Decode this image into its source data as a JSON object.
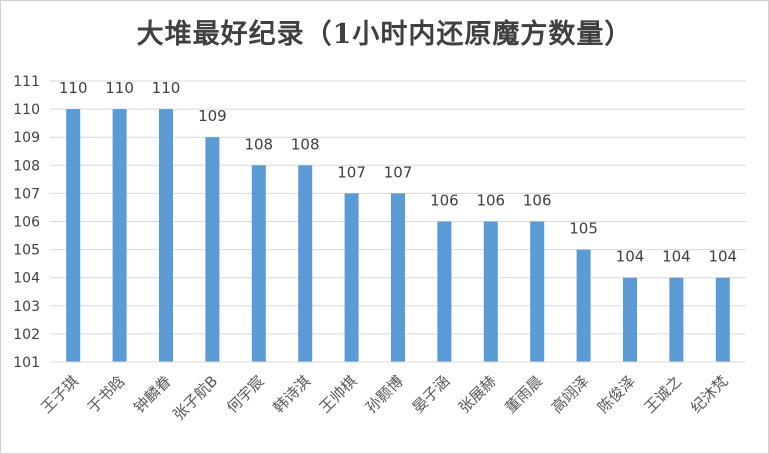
{
  "chart_data": {
    "type": "bar",
    "title": "大堆最好纪录（1小时内还原魔方数量）",
    "xlabel": "",
    "ylabel": "",
    "categories": [
      "王子琪",
      "于书晗",
      "钟麟眷",
      "张子航B",
      "何宇宸",
      "韩诗淇",
      "王帅棋",
      "孙颢博",
      "晏子涵",
      "张展赫",
      "董雨晨",
      "高翊泽",
      "陈俊泽",
      "王诚之",
      "纪沐梵"
    ],
    "values": [
      110,
      110,
      110,
      109,
      108,
      108,
      107,
      107,
      106,
      106,
      106,
      105,
      104,
      104,
      104
    ],
    "ylim": [
      101,
      111
    ],
    "yticks": [
      101,
      102,
      103,
      104,
      105,
      106,
      107,
      108,
      109,
      110,
      111
    ],
    "grid": true,
    "legend": "none",
    "bar_color": "#5b9bd5",
    "grid_color": "#d9d9d9"
  }
}
